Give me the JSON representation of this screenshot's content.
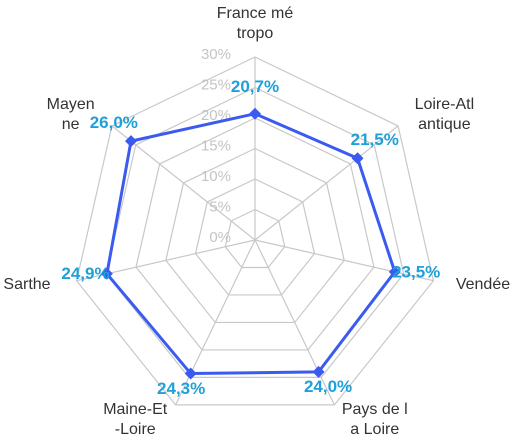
{
  "chart_data": {
    "type": "radar",
    "categories": [
      "France métropo",
      "Loire-Atlantique",
      "Vendée",
      "Pays de la Loire",
      "Maine-Et-Loire",
      "Sarthe",
      "Mayenne"
    ],
    "series": [
      {
        "color": "#3b5bf0",
        "values": [
          20.7,
          21.5,
          23.5,
          24.0,
          24.3,
          24.9,
          26.0
        ],
        "value_labels": [
          "20,7%",
          "21,5%",
          "23,5%",
          "24,0%",
          "24,3%",
          "24,9%",
          "26,0%"
        ]
      }
    ],
    "ylim": [
      0,
      30
    ],
    "yticks": [
      {
        "value": 0,
        "label": "0%"
      },
      {
        "value": 5,
        "label": "5%"
      },
      {
        "value": 10,
        "label": "10%"
      },
      {
        "value": 15,
        "label": "15%"
      },
      {
        "value": 20,
        "label": "20%"
      },
      {
        "value": 25,
        "label": "25%"
      },
      {
        "value": 30,
        "label": "30%"
      }
    ],
    "grid": true
  }
}
